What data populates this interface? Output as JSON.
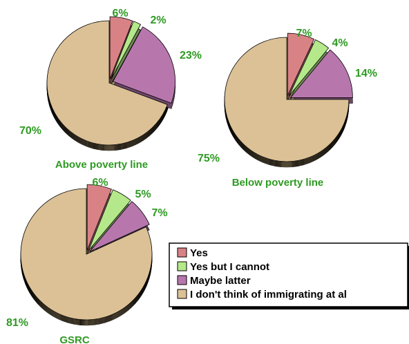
{
  "legend": {
    "entries": [
      {
        "label": "Yes",
        "color": "#d98286"
      },
      {
        "label": "Yes but I cannot",
        "color": "#b5e88a"
      },
      {
        "label": "Maybe latter",
        "color": "#b777ad"
      },
      {
        "label": "I don't think of immigrating at al",
        "color": "#dcc196"
      }
    ]
  },
  "label_color": "#2e9a22",
  "chart_data": [
    {
      "type": "pie",
      "title": "Above poverty line",
      "series": [
        {
          "values": [
            6,
            2,
            23,
            70
          ]
        }
      ],
      "value_labels": [
        "6%",
        "2%",
        "23%",
        "70%"
      ]
    },
    {
      "type": "pie",
      "title": "Below poverty line",
      "series": [
        {
          "values": [
            7,
            4,
            14,
            75
          ]
        }
      ],
      "value_labels": [
        "7%",
        "4%",
        "14%",
        "75%"
      ]
    },
    {
      "type": "pie",
      "title": "GSRC",
      "series": [
        {
          "values": [
            6,
            5,
            7,
            81
          ]
        }
      ],
      "value_labels": [
        "6%",
        "5%",
        "7%",
        "81%"
      ]
    }
  ]
}
